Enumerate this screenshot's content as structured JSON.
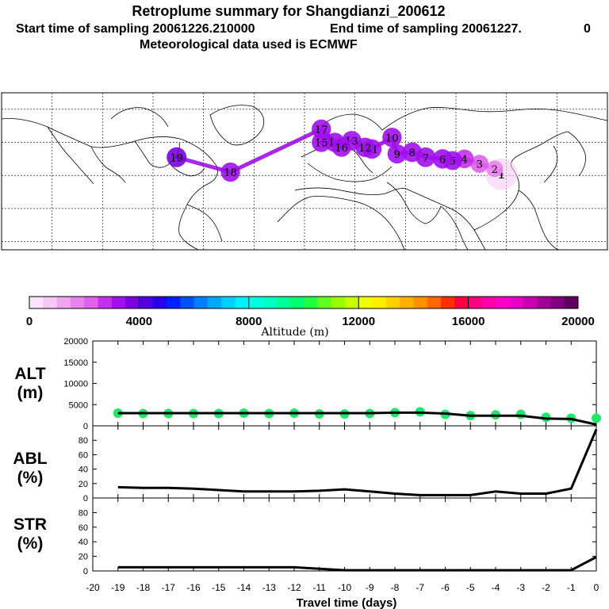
{
  "header": {
    "title": "Retroplume summary for Shangdianzi_200612",
    "start_label": "Start time of sampling 20061226.210000",
    "end_label": "End time of sampling 20061227.",
    "end_suffix": "0",
    "met_label": "Meteorological data used is ECMWF"
  },
  "colors": {
    "colorbar": [
      "#fbe4fb",
      "#f5c8f5",
      "#efa6ef",
      "#e884ec",
      "#df62ec",
      "#c530ec",
      "#a010ec",
      "#7a00e0",
      "#5200e0",
      "#2800ec",
      "#0020ff",
      "#0050ff",
      "#0080ff",
      "#00a8ff",
      "#00d0ff",
      "#00f0ff",
      "#00ffe0",
      "#00ffc0",
      "#00ff98",
      "#00ff70",
      "#20ff40",
      "#60ff20",
      "#98ff00",
      "#c8ff00",
      "#f0ff00",
      "#ffee00",
      "#ffd000",
      "#ffb000",
      "#ff9000",
      "#ff6800",
      "#ff3000",
      "#ff0040",
      "#ff0080",
      "#ff00a8",
      "#ff00c8",
      "#e800c8",
      "#c800b0",
      "#a00098",
      "#800080",
      "#600060"
    ],
    "line": "#000000",
    "alt_markers": "#22e66a"
  },
  "map": {
    "markers": [
      {
        "label": "1",
        "lon": 117.1,
        "lat": 40.7,
        "alt": 500
      },
      {
        "label": "2",
        "lon": 113,
        "lat": 44,
        "alt": 1500
      },
      {
        "label": "3",
        "lon": 104,
        "lat": 47,
        "alt": 2400
      },
      {
        "label": "4",
        "lon": 95,
        "lat": 50,
        "alt": 2800
      },
      {
        "label": "5",
        "lon": 88,
        "lat": 49,
        "alt": 3000
      },
      {
        "label": "6",
        "lon": 82,
        "lat": 50,
        "alt": 3200
      },
      {
        "label": "7",
        "lon": 72,
        "lat": 51,
        "alt": 3400
      },
      {
        "label": "8",
        "lon": 64,
        "lat": 54,
        "alt": 3300
      },
      {
        "label": "9",
        "lon": 55,
        "lat": 53,
        "alt": 3100
      },
      {
        "label": "10",
        "lon": 52,
        "lat": 63,
        "alt": 3200
      },
      {
        "label": "11",
        "lon": 40,
        "lat": 56,
        "alt": 3300
      },
      {
        "label": "12",
        "lon": 36,
        "lat": 57,
        "alt": 3200
      },
      {
        "label": "13",
        "lon": 28,
        "lat": 61,
        "alt": 3300
      },
      {
        "label": "14",
        "lon": 18,
        "lat": 60,
        "alt": 3200
      },
      {
        "label": "15",
        "lon": 10,
        "lat": 60,
        "alt": 3100
      },
      {
        "label": "16",
        "lon": 22,
        "lat": 57,
        "alt": 3000
      },
      {
        "label": "17",
        "lon": 10,
        "lat": 68,
        "alt": 3200
      },
      {
        "label": "18",
        "lon": -44,
        "lat": 42,
        "alt": 3100
      },
      {
        "label": "19",
        "lon": -76,
        "lat": 51,
        "alt": 3500
      }
    ]
  },
  "chart_data": [
    {
      "type": "colorbar",
      "title": "Altitude (m)",
      "range": [
        0,
        20000
      ],
      "ticks": [
        "0",
        "4000",
        "8000",
        "12000",
        "16000",
        "20000"
      ]
    },
    {
      "type": "line",
      "name": "ALT",
      "ylabel": "ALT",
      "yunit": "(m)",
      "ylim": [
        0,
        20000
      ],
      "yticks": [
        "0",
        "5000",
        "10000",
        "15000",
        "20000"
      ],
      "x": [
        -19,
        -18,
        -17,
        -16,
        -15,
        -14,
        -13,
        -12,
        -11,
        -10,
        -9,
        -8,
        -7,
        -6,
        -5,
        -4,
        -3,
        -2,
        -1,
        0
      ],
      "values": [
        3000,
        3000,
        3000,
        3000,
        3000,
        3000,
        3000,
        3000,
        3000,
        3000,
        3000,
        3100,
        3100,
        2900,
        2400,
        2400,
        2400,
        1700,
        1600,
        300
      ],
      "markers": [
        3000,
        2900,
        2900,
        2900,
        2900,
        3000,
        2900,
        3000,
        2800,
        2800,
        2900,
        3100,
        3300,
        2700,
        2400,
        2600,
        2700,
        2000,
        1800,
        1800
      ]
    },
    {
      "type": "line",
      "name": "ABL",
      "ylabel": "ABL",
      "yunit": "(%)",
      "ylim": [
        0,
        100
      ],
      "yticks": [
        "0",
        "20",
        "40",
        "60",
        "80"
      ],
      "x": [
        -19,
        -18,
        -17,
        -16,
        -15,
        -14,
        -13,
        -12,
        -11,
        -10,
        -9,
        -8,
        -7,
        -6,
        -5,
        -4,
        -3,
        -2,
        -1,
        0
      ],
      "values": [
        15,
        14,
        14,
        13,
        11,
        9,
        9,
        9,
        10,
        12,
        9,
        6,
        4,
        4,
        4,
        9,
        6,
        6,
        13,
        95
      ]
    },
    {
      "type": "line",
      "name": "STR",
      "ylabel": "STR",
      "yunit": "(%)",
      "ylim": [
        0,
        100
      ],
      "yticks": [
        "0",
        "20",
        "40",
        "60",
        "80"
      ],
      "x": [
        -19,
        -18,
        -17,
        -16,
        -15,
        -14,
        -13,
        -12,
        -11,
        -10,
        -9,
        -8,
        -7,
        -6,
        -5,
        -4,
        -3,
        -2,
        -1,
        0
      ],
      "values": [
        5,
        5,
        5,
        5,
        5,
        5,
        5,
        5,
        3,
        1,
        1,
        1,
        1,
        1,
        1,
        1,
        1,
        1,
        1,
        19
      ]
    },
    {
      "type": "axis",
      "xlabel": "Travel time (days)",
      "xlim": [
        -20,
        0
      ],
      "xticks": [
        "-20",
        "-19",
        "-18",
        "-17",
        "-16",
        "-15",
        "-14",
        "-13",
        "-12",
        "-11",
        "-10",
        "-9",
        "-8",
        "-7",
        "-6",
        "-5",
        "-4",
        "-3",
        "-2",
        "-1",
        "0"
      ]
    }
  ]
}
